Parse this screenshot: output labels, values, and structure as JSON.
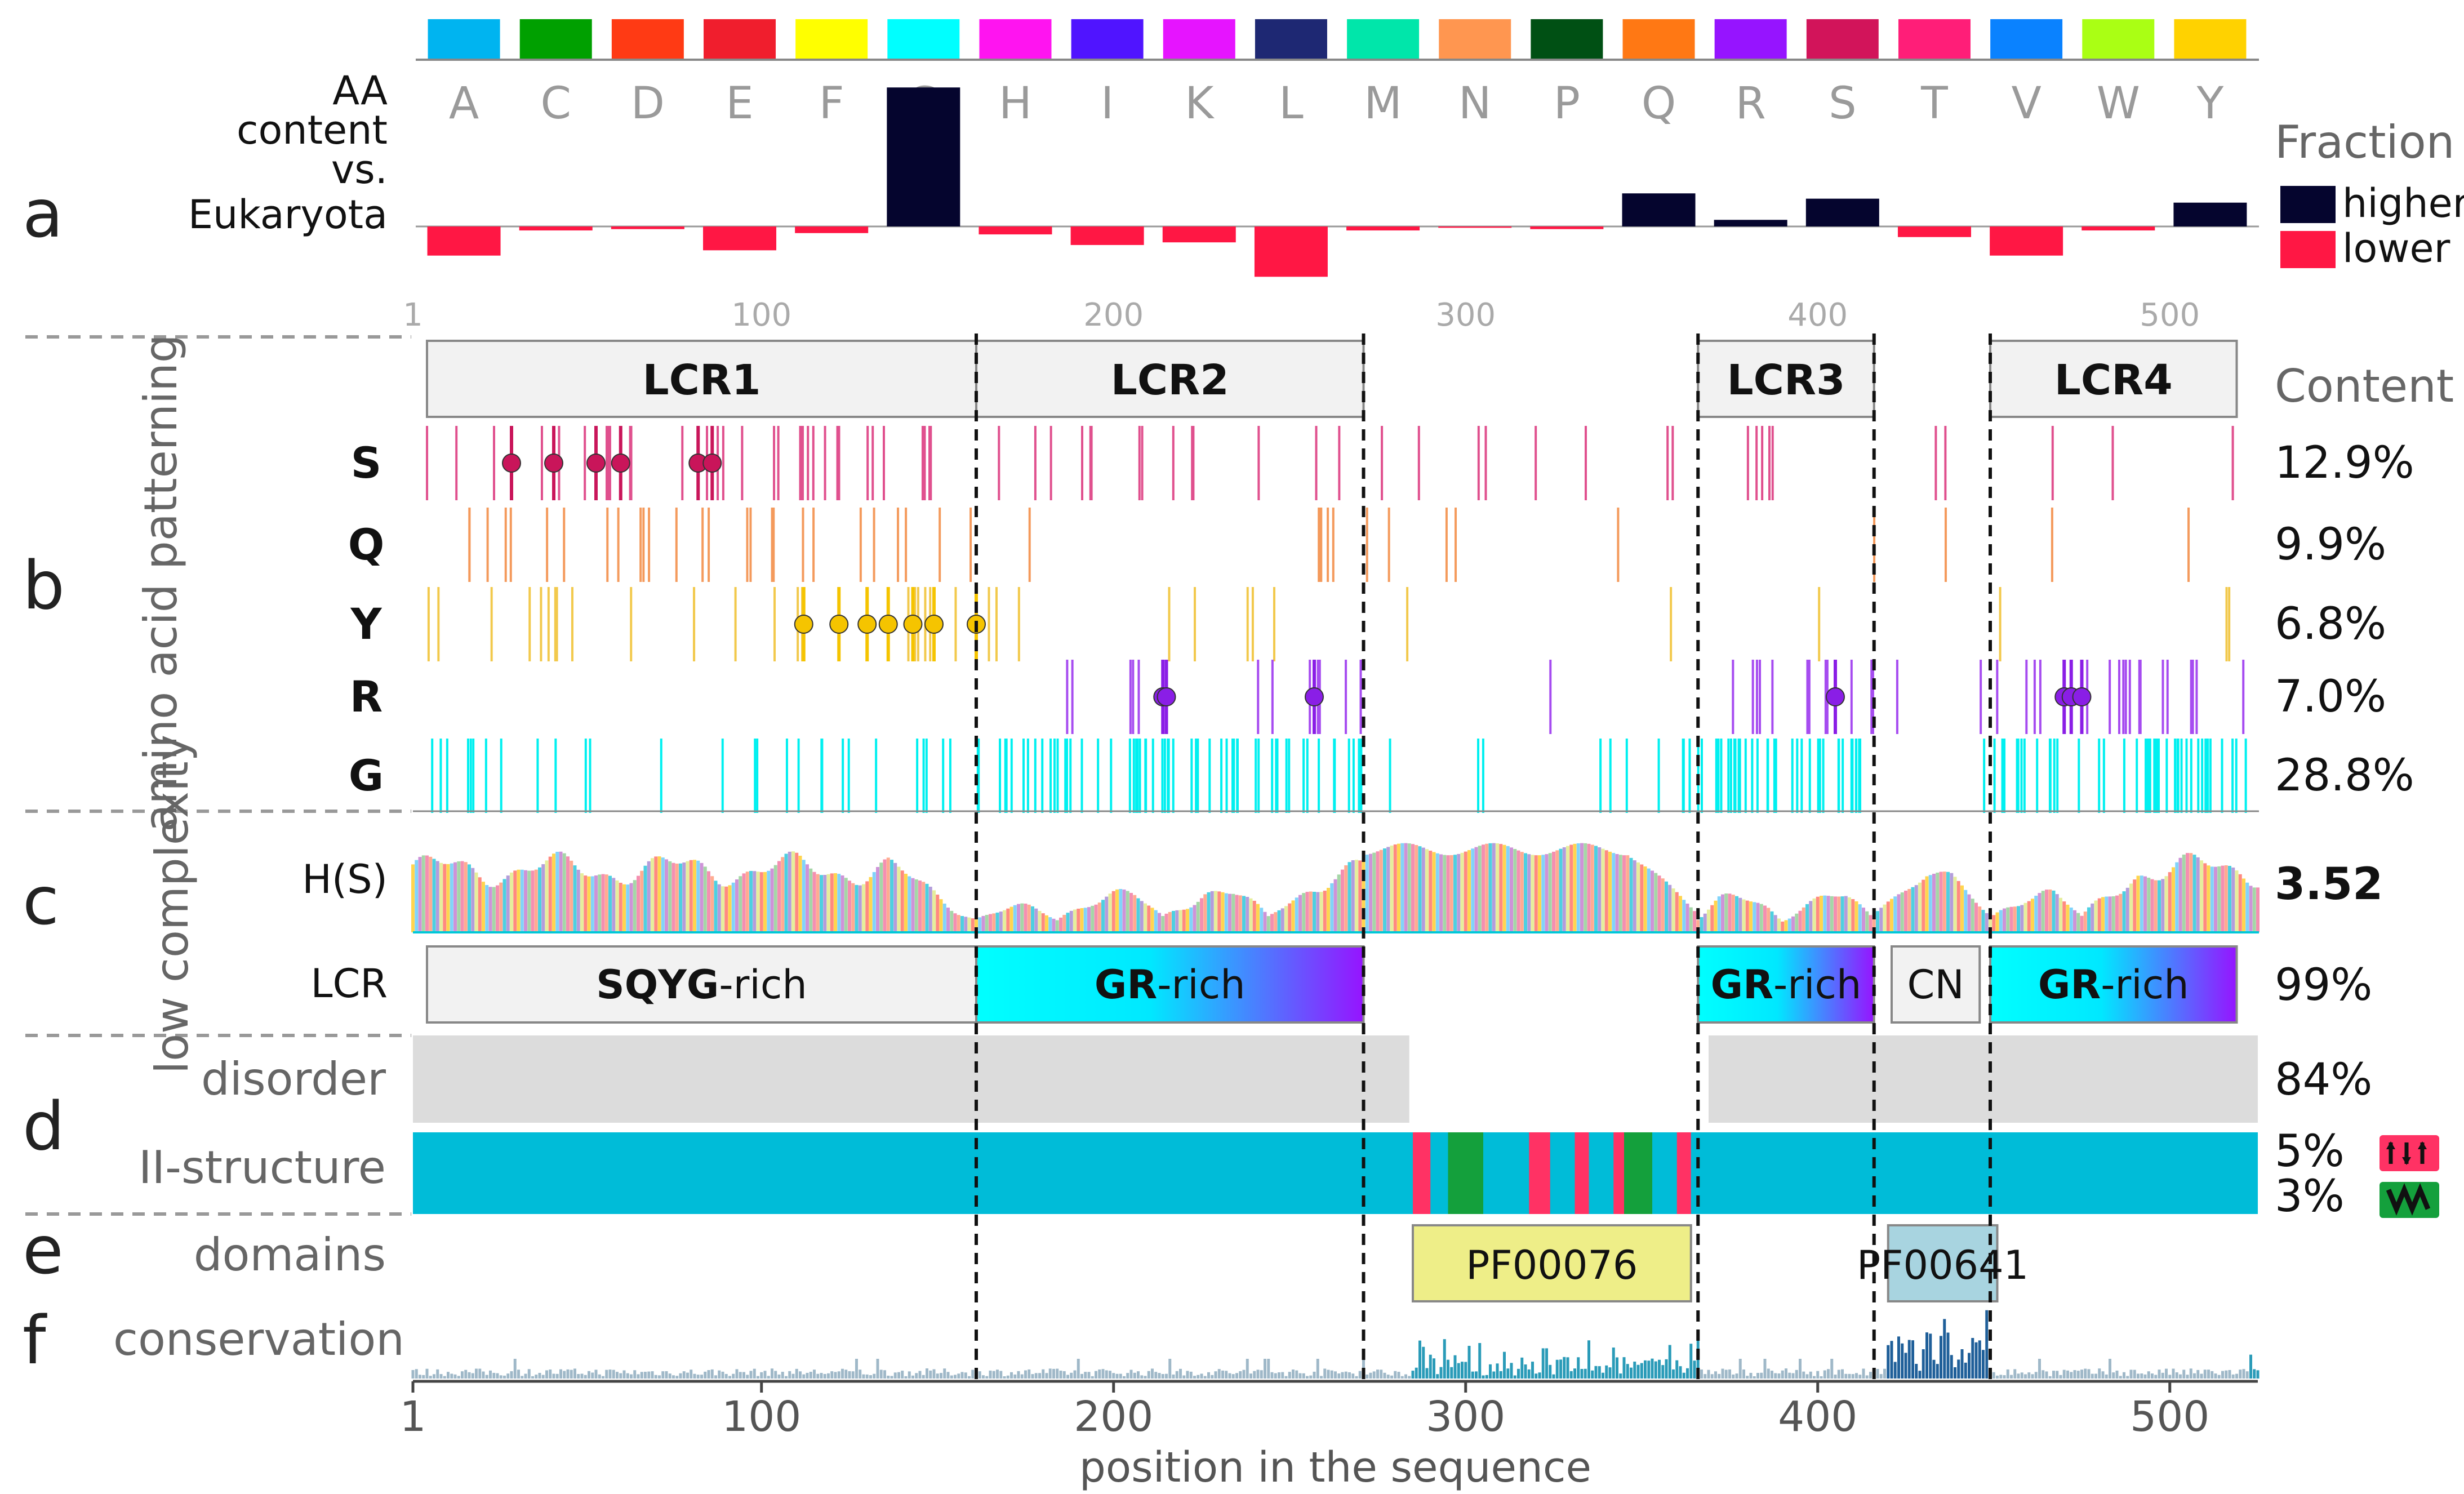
{
  "chart_data": {
    "type": "sequence-feature-plot",
    "sequence_length": 525,
    "x_range": [
      1,
      525
    ],
    "top_axis_ticks": [
      1,
      100,
      200,
      300,
      400,
      500
    ],
    "bottom_axis_ticks": [
      1,
      100,
      200,
      300,
      400,
      500
    ],
    "xlabel": "position in the sequence",
    "region_boundaries": [
      161,
      271,
      366,
      416,
      449
    ],
    "panels": {
      "a": {
        "letter": "a",
        "label_lines": [
          "AA",
          "content",
          "vs.",
          "Eukaryota"
        ],
        "amino_acids": [
          "A",
          "C",
          "D",
          "E",
          "F",
          "G",
          "H",
          "I",
          "K",
          "L",
          "M",
          "N",
          "P",
          "Q",
          "R",
          "S",
          "T",
          "V",
          "W",
          "Y"
        ],
        "colors": [
          "#00b4f0",
          "#00a000",
          "#ff3a14",
          "#f01e2d",
          "#ffff00",
          "#00ffff",
          "#ff14f0",
          "#5014ff",
          "#e614ff",
          "#1e2873",
          "#00e6aa",
          "#ff9650",
          "#005014",
          "#ff7814",
          "#9614ff",
          "#d2145a",
          "#ff1e78",
          "#0a82ff",
          "#aaff14",
          "#ffd200"
        ],
        "fraction_diff": [
          -0.022,
          -0.003,
          -0.002,
          -0.018,
          -0.005,
          0.105,
          -0.006,
          -0.014,
          -0.012,
          -0.038,
          -0.003,
          -0.001,
          -0.002,
          0.025,
          0.005,
          0.021,
          -0.008,
          -0.022,
          -0.003,
          0.018
        ],
        "legend_title": "Fraction",
        "legend": [
          {
            "label": "higher",
            "color": "#05052e"
          },
          {
            "label": "lower",
            "color": "#ff1744"
          }
        ]
      },
      "b": {
        "letter": "b",
        "side_label": "amino acid patterning",
        "content_header": "Content",
        "lcr_boxes": [
          {
            "label": "LCR1",
            "start": 5,
            "end": 161
          },
          {
            "label": "LCR2",
            "start": 161,
            "end": 271
          },
          {
            "label": "LCR3",
            "start": 366,
            "end": 416
          },
          {
            "label": "LCR4",
            "start": 449,
            "end": 519
          }
        ],
        "rows": [
          {
            "letter": "S",
            "color": "#e0508e",
            "content": "12.9%",
            "clusters": [
              [
                5,
                160,
                34
              ],
              [
                161,
                271,
                14
              ],
              [
                271,
                366,
                8
              ],
              [
                366,
                416,
                5
              ],
              [
                416,
                449,
                2
              ],
              [
                449,
                525,
                3
              ]
            ],
            "markers": [
              29,
              41,
              53,
              60,
              82,
              86
            ],
            "marker_color": "#c9155a"
          },
          {
            "letter": "Q",
            "color": "#f49a5c",
            "content": "9.9%",
            "clusters": [
              [
                5,
                160,
                28
              ],
              [
                161,
                271,
                6
              ],
              [
                271,
                366,
                5
              ],
              [
                366,
                416,
                0
              ],
              [
                416,
                449,
                2
              ],
              [
                449,
                525,
                2
              ]
            ],
            "markers": [],
            "marker_color": "#ff7814"
          },
          {
            "letter": "Y",
            "color": "#f2c94c",
            "content": "6.8%",
            "clusters": [
              [
                5,
                160,
                22
              ],
              [
                161,
                271,
                8
              ],
              [
                271,
                366,
                2
              ],
              [
                366,
                416,
                1
              ],
              [
                416,
                449,
                0
              ],
              [
                449,
                525,
                3
              ]
            ],
            "markers": [
              112,
              122,
              130,
              136,
              143,
              149,
              161
            ],
            "marker_color": "#f5c400"
          },
          {
            "letter": "R",
            "color": "#a64cf0",
            "content": "7.0%",
            "clusters": [
              [
                161,
                271,
                12
              ],
              [
                271,
                366,
                1
              ],
              [
                366,
                416,
                12
              ],
              [
                416,
                449,
                2
              ],
              [
                449,
                525,
                18
              ]
            ],
            "markers": [
              214,
              215,
              257,
              405,
              470,
              472,
              475
            ],
            "marker_color": "#8a1ee6"
          },
          {
            "letter": "G",
            "color": "#00f0f0",
            "content": "28.8%",
            "clusters": [
              [
                5,
                160,
                28
              ],
              [
                161,
                271,
                60
              ],
              [
                271,
                366,
                10
              ],
              [
                366,
                416,
                36
              ],
              [
                416,
                449,
                1
              ],
              [
                449,
                525,
                42
              ]
            ],
            "markers": [],
            "marker_color": "#00c8c8"
          }
        ]
      },
      "c": {
        "letter": "c",
        "side_label": "low complexity",
        "entropy_label": "H(S)",
        "entropy_value": "3.52",
        "lcr_label": "LCR",
        "lcr_value": "99%",
        "lcr_boxes": [
          {
            "bold": "SQYG",
            "rest": "-rich",
            "start": 5,
            "end": 161,
            "style": "grey"
          },
          {
            "bold": "GR",
            "rest": "-rich",
            "start": 161,
            "end": 271,
            "style": "gradient"
          },
          {
            "bold": "GR",
            "rest": "-rich",
            "start": 366,
            "end": 416,
            "style": "gradient"
          },
          {
            "bold": "",
            "rest": "CN",
            "start": 421,
            "end": 446,
            "style": "grey"
          },
          {
            "bold": "GR",
            "rest": "-rich",
            "start": 449,
            "end": 519,
            "style": "gradient"
          }
        ]
      },
      "d": {
        "letter": "d",
        "disorder_label": "disorder",
        "disorder_value": "84%",
        "disorder_regions": [
          [
            1,
            284
          ],
          [
            369,
            525
          ]
        ],
        "structure_label": "II-structure",
        "strand_value": "5%",
        "helix_value": "3%",
        "strand_color": "#ff3264",
        "helix_color": "#14a03c",
        "coil_color": "#00bcd8",
        "strand_regions": [
          [
            285,
            290
          ],
          [
            318,
            324
          ],
          [
            331,
            335
          ],
          [
            342,
            347
          ],
          [
            360,
            364
          ]
        ],
        "helix_regions": [
          [
            295,
            305
          ],
          [
            345,
            353
          ]
        ]
      },
      "e": {
        "letter": "e",
        "label": "domains",
        "domains": [
          {
            "name": "PF00076",
            "start": 285,
            "end": 364,
            "color": "#eeee88"
          },
          {
            "name": "PF00641",
            "start": 420,
            "end": 451,
            "color": "#a8d4e0"
          }
        ]
      },
      "f": {
        "letter": "f",
        "label": "conservation",
        "high_regions": [
          [
            285,
            366,
            0.55
          ],
          [
            420,
            448,
            1.0
          ],
          [
            523,
            525,
            0.45
          ]
        ]
      }
    }
  }
}
